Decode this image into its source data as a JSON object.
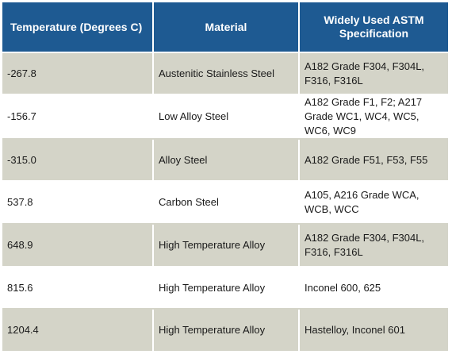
{
  "headers": {
    "temperature": "Temperature (Degrees C)",
    "material": "Material",
    "specification": "Widely Used ASTM Specification"
  },
  "rows": [
    {
      "temperature": "-267.8",
      "material": "Austenitic Stainless Steel",
      "specification": "A182 Grade F304, F304L, F316, F316L"
    },
    {
      "temperature": "-156.7",
      "material": "Low Alloy Steel",
      "specification": "A182 Grade F1, F2; A217 Grade WC1, WC4, WC5, WC6, WC9"
    },
    {
      "temperature": "-315.0",
      "material": "Alloy Steel",
      "specification": "A182 Grade F51, F53, F55"
    },
    {
      "temperature": "537.8",
      "material": "Carbon Steel",
      "specification": "A105, A216 Grade WCA, WCB, WCC"
    },
    {
      "temperature": "648.9",
      "material": "High Temperature Alloy",
      "specification": "A182 Grade F304, F304L, F316, F316L"
    },
    {
      "temperature": "815.6",
      "material": "High Temperature Alloy",
      "specification": "Inconel 600, 625"
    },
    {
      "temperature": "1204.4",
      "material": "High Temperature Alloy",
      "specification": "Hastelloy, Inconel 601"
    }
  ],
  "colors": {
    "header_background": "#1e5a92",
    "shaded_row": "#d4d4c8",
    "plain_row": "#ffffff"
  }
}
